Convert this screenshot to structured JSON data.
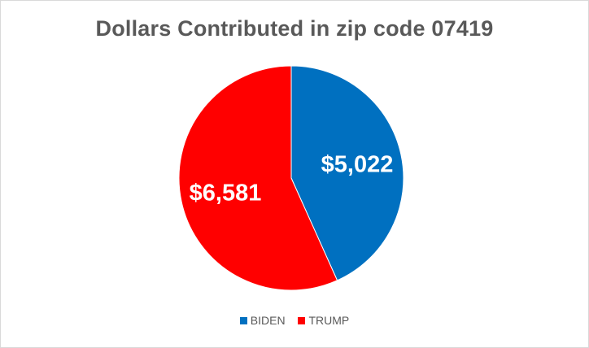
{
  "chart_data": {
    "type": "pie",
    "title": "Dollars Contributed in zip code 07419",
    "slices": [
      {
        "label": "BIDEN",
        "value": 5022,
        "display": "$5,022",
        "color": "#0070c0"
      },
      {
        "label": "TRUMP",
        "value": 6581,
        "display": "$6,581",
        "color": "#ff0000"
      }
    ],
    "legend_position": "bottom"
  }
}
